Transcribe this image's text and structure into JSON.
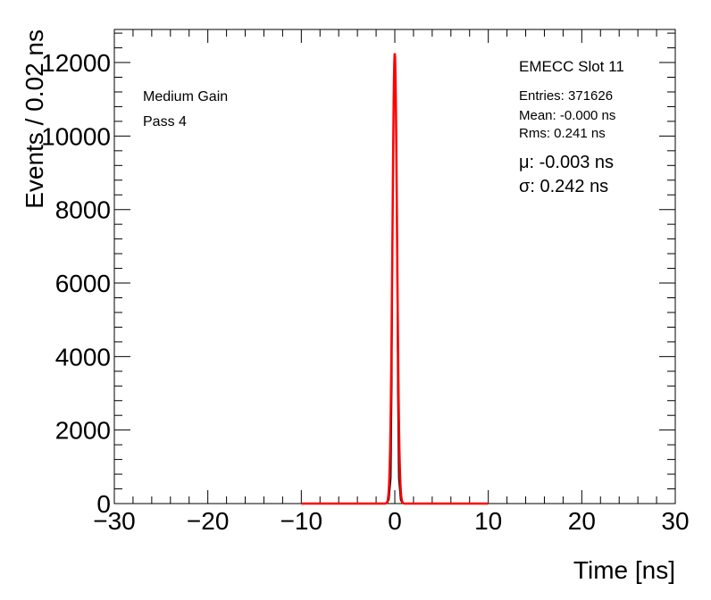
{
  "chart_data": {
    "type": "line",
    "title": "EMECC Slot 11",
    "xlabel": "Time [ns]",
    "ylabel": "Events / 0.02 ns",
    "xlim": [
      -30,
      30
    ],
    "ylim": [
      0,
      12900
    ],
    "x_ticks": [
      -30,
      -20,
      -10,
      0,
      10,
      20,
      30
    ],
    "x_tick_labels": [
      "−30",
      "−20",
      "−10",
      "0",
      "10",
      "20",
      "30"
    ],
    "y_ticks": [
      0,
      2000,
      4000,
      6000,
      8000,
      10000,
      12000
    ],
    "y_tick_labels": [
      "0",
      "2000",
      "4000",
      "6000",
      "8000",
      "10000",
      "12000"
    ],
    "grid": false,
    "annotations": {
      "gain": "Medium Gain",
      "pass": "Pass 4",
      "entries": "Entries: 371626",
      "mean": "Mean: -0.000 ns",
      "rms": "Rms: 0.241 ns",
      "fit_mu": "μ: -0.003 ns",
      "fit_sigma": "σ: 0.242 ns"
    },
    "series": [
      {
        "style": "histogram",
        "color": "#000000",
        "x": [
          -0.8,
          -0.6,
          -0.4,
          -0.3,
          -0.2,
          -0.1,
          0.0,
          0.1,
          0.2,
          0.3,
          0.4,
          0.6,
          0.8
        ],
        "values": [
          0,
          120,
          700,
          3300,
          8500,
          11500,
          12200,
          11300,
          7600,
          3100,
          700,
          100,
          0
        ]
      },
      {
        "style": "fit",
        "color": "#ff0000",
        "mu": -0.003,
        "sigma": 0.242,
        "peak": 12250,
        "x_range": [
          -10,
          10
        ]
      }
    ]
  }
}
